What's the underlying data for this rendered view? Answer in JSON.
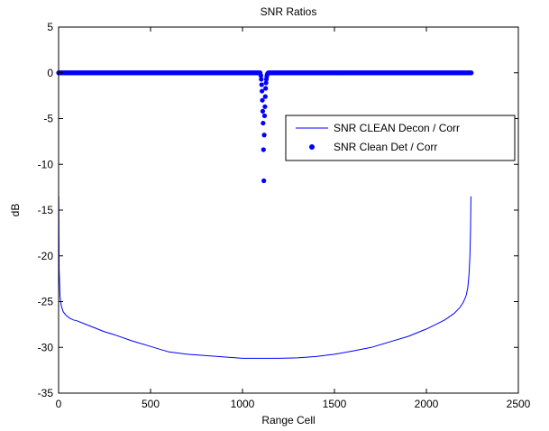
{
  "chart_data": {
    "type": "line",
    "title": "SNR Ratios",
    "xlabel": "Range Cell",
    "ylabel": "dB",
    "xlim": [
      0,
      2500
    ],
    "ylim": [
      -35,
      5
    ],
    "xticks": [
      0,
      500,
      1000,
      1500,
      2000,
      2500
    ],
    "yticks": [
      5,
      0,
      -5,
      -10,
      -15,
      -20,
      -25,
      -30,
      -35
    ],
    "xtick_labels": [
      "0",
      "500",
      "1000",
      "1500",
      "2000",
      "2500"
    ],
    "ytick_labels": [
      "5",
      "0",
      "-5",
      "-10",
      "-15",
      "-20",
      "-25",
      "-30",
      "-35"
    ],
    "grid": false,
    "legend": {
      "location": "right",
      "entries": [
        "SNR CLEAN Decon / Corr",
        "SNR Clean Det / Corr"
      ]
    },
    "series": [
      {
        "name": "SNR CLEAN Decon / Corr",
        "style": "line",
        "color": "#0000ff",
        "x": [
          1,
          3,
          8,
          15,
          25,
          40,
          60,
          80,
          100,
          150,
          200,
          250,
          300,
          400,
          500,
          550,
          600,
          700,
          800,
          900,
          1000,
          1100,
          1200,
          1300,
          1400,
          1500,
          1600,
          1700,
          1800,
          1900,
          2000,
          2050,
          2100,
          2150,
          2180,
          2200,
          2215,
          2225,
          2232,
          2237,
          2240,
          2242
        ],
        "y": [
          -13.5,
          -21.5,
          -24.5,
          -25.5,
          -26.1,
          -26.5,
          -26.8,
          -27.0,
          -27.1,
          -27.5,
          -27.9,
          -28.3,
          -28.6,
          -29.3,
          -29.9,
          -30.2,
          -30.5,
          -30.75,
          -30.9,
          -31.05,
          -31.2,
          -31.2,
          -31.2,
          -31.15,
          -31.0,
          -30.75,
          -30.4,
          -30.0,
          -29.4,
          -28.8,
          -28.0,
          -27.5,
          -27.0,
          -26.3,
          -25.7,
          -25.1,
          -24.4,
          -23.5,
          -22.0,
          -20.0,
          -17.0,
          -13.5
        ]
      },
      {
        "name": "SNR Clean Det / Corr",
        "style": "markers",
        "color": "#0000ff",
        "x_range": [
          0,
          2245
        ],
        "baseline": 0,
        "dip": {
          "x": [
            1100,
            1102,
            1104,
            1106,
            1108,
            1110,
            1112,
            1114,
            1116,
            1118,
            1120,
            1122,
            1124,
            1126,
            1128,
            1130,
            1132,
            1134,
            1136
          ],
          "y": [
            -0.3,
            -0.7,
            -1.3,
            -2.0,
            -3.0,
            -4.2,
            -5.5,
            -8.4,
            -11.8,
            -6.8,
            -4.7,
            -3.7,
            -2.6,
            -1.7,
            -1.1,
            -0.7,
            -0.4,
            -0.2,
            -0.1
          ]
        }
      }
    ]
  }
}
